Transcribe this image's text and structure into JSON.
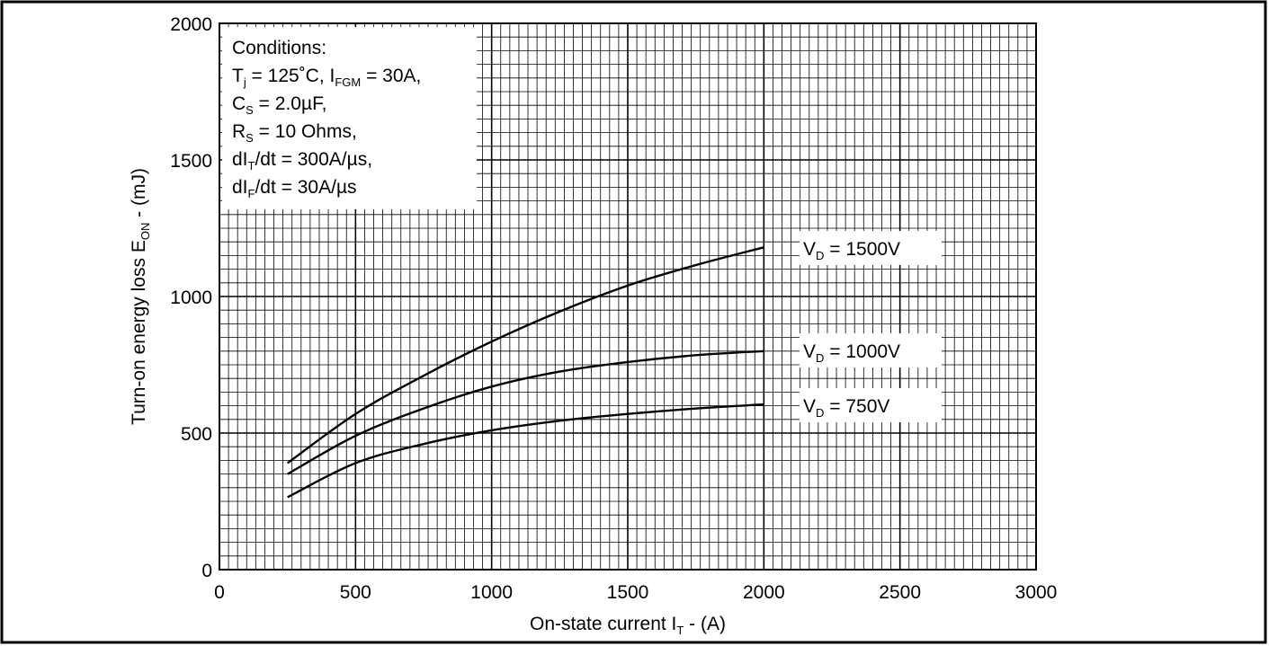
{
  "chart_data": {
    "type": "line",
    "xlabel_main": "On-state current I",
    "xlabel_sub": "T",
    "xlabel_tail": " - (A)",
    "ylabel_main": "Turn-on energy loss E",
    "ylabel_sub": "ON",
    "ylabel_tail": " - (mJ)",
    "xlim": [
      0,
      3000
    ],
    "ylim": [
      0,
      2000
    ],
    "xticks": [
      0,
      500,
      1000,
      1500,
      2000,
      2500,
      3000
    ],
    "yticks": [
      0,
      500,
      1000,
      1500,
      2000
    ],
    "grid": true,
    "conditions": [
      {
        "segments": [
          {
            "t": "Conditions:"
          }
        ]
      },
      {
        "segments": [
          {
            "t": "T"
          },
          {
            "t": "j",
            "sub": true
          },
          {
            "t": " = 125˚C, I"
          },
          {
            "t": "FGM",
            "sub": true
          },
          {
            "t": " = 30A,"
          }
        ]
      },
      {
        "segments": [
          {
            "t": "C"
          },
          {
            "t": "S",
            "sub": true
          },
          {
            "t": " = 2.0µF,"
          }
        ]
      },
      {
        "segments": [
          {
            "t": "R"
          },
          {
            "t": "S",
            "sub": true
          },
          {
            "t": " = 10 Ohms,"
          }
        ]
      },
      {
        "segments": [
          {
            "t": "dI"
          },
          {
            "t": "T",
            "sub": true
          },
          {
            "t": "/dt = 300A/µs,"
          }
        ]
      },
      {
        "segments": [
          {
            "t": "dI"
          },
          {
            "t": "F",
            "sub": true
          },
          {
            "t": "/dt = 30A/µs"
          }
        ]
      }
    ],
    "series": [
      {
        "label_main": "V",
        "label_sub": "D",
        "label_tail": " = 1500V",
        "x": [
          250,
          500,
          750,
          1000,
          1250,
          1500,
          1750,
          2000
        ],
        "y": [
          390,
          570,
          710,
          835,
          945,
          1040,
          1115,
          1180
        ]
      },
      {
        "label_main": "V",
        "label_sub": "D",
        "label_tail": " = 1000V",
        "x": [
          250,
          500,
          750,
          1000,
          1250,
          1500,
          1750,
          2000
        ],
        "y": [
          350,
          490,
          590,
          670,
          725,
          760,
          785,
          800
        ]
      },
      {
        "label_main": "V",
        "label_sub": "D",
        "label_tail": " = 750V",
        "x": [
          250,
          500,
          750,
          1000,
          1250,
          1500,
          1750,
          2000
        ],
        "y": [
          265,
          390,
          460,
          510,
          545,
          570,
          590,
          605
        ]
      }
    ]
  }
}
